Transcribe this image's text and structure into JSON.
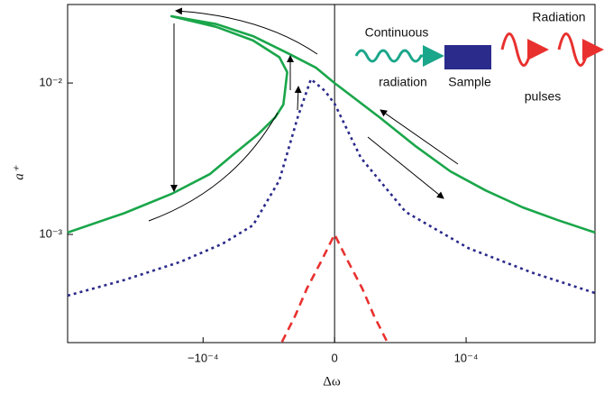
{
  "chart_data": {
    "type": "line",
    "log_y": true,
    "xlabel": "Δω",
    "ylabel": "a⁺",
    "xlim": [
      -0.000203,
      0.000198
    ],
    "ylim": [
      0.000193,
      0.033
    ],
    "xticks": [
      {
        "value": -0.0001,
        "label": "−10⁻⁴"
      },
      0,
      {
        "value": 0.0001,
        "label": "10⁻⁴"
      }
    ],
    "yticks": [
      {
        "value": 0.001,
        "label": "10⁻³"
      },
      {
        "value": 0.01,
        "label": "10⁻²"
      }
    ],
    "annotations": [
      "Continuous",
      "radiation",
      "Sample",
      "Radiation",
      "pulses"
    ],
    "series": [
      {
        "color": "#1aa64a",
        "dash": "solid",
        "x": [
          -0.000203,
          -0.00016,
          -0.000124,
          -9.5e-05,
          -7.6e-05,
          -5.8e-05,
          -4.5e-05,
          -3.9e-05,
          -3.8e-05,
          -3.6e-05,
          -4.2e-05,
          -6.2e-05,
          -9e-05,
          -0.000124,
          -9e-05,
          -6.2e-05,
          -3.6e-05,
          -1.4e-05,
          0,
          3.4e-05,
          6.2e-05,
          8.8e-05,
          0.000115,
          0.000143,
          0.00017,
          0.000198
        ],
        "y": [
          0.00103,
          0.00138,
          0.00185,
          0.0025,
          0.00343,
          0.0046,
          0.00595,
          0.0072,
          0.0084,
          0.0118,
          0.0148,
          0.0191,
          0.0235,
          0.0276,
          0.0245,
          0.0204,
          0.0158,
          0.0126,
          0.01,
          0.00595,
          0.0038,
          0.00261,
          0.00195,
          0.00151,
          0.00124,
          0.00103
        ]
      },
      {
        "color": "#2a2a8a",
        "dash": "dotted",
        "x": [
          -0.000203,
          -0.00016,
          -0.000117,
          -8.5e-05,
          -6.2e-05,
          -4.2e-05,
          -2.8e-05,
          -1.8e-05,
          -7.5e-06,
          0,
          2e-05,
          5.4e-05,
          0.000102,
          0.00015,
          0.000198
        ],
        "y": [
          0.000394,
          0.0005,
          0.00066,
          0.00087,
          0.00115,
          0.00228,
          0.00595,
          0.0106,
          0.0089,
          0.0073,
          0.00321,
          0.00141,
          0.00081,
          0.00056,
          0.00041
        ]
      },
      {
        "color": "#e8312f",
        "dash": "dashed",
        "x": [
          -4e-05,
          -3e-05,
          -2.1e-05,
          -1e-05,
          0,
          1e-05,
          2.1e-05,
          3e-05,
          4e-05
        ],
        "y": [
          0.000195,
          0.00029,
          0.00044,
          0.00067,
          0.001,
          0.00067,
          0.00044,
          0.00029,
          0.000195
        ]
      }
    ]
  }
}
